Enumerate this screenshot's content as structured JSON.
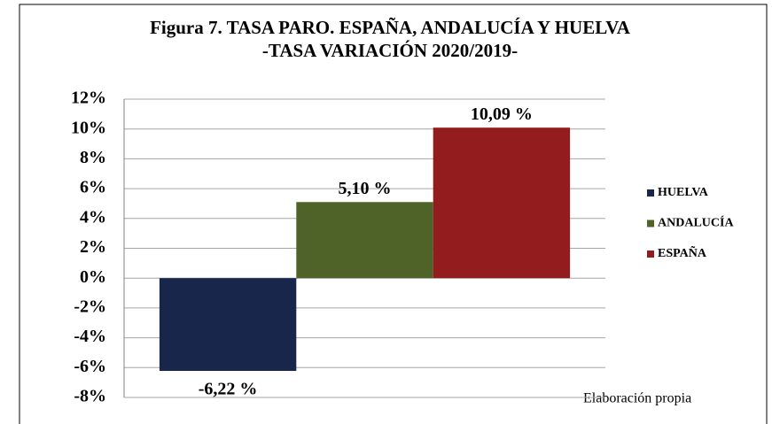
{
  "chart_data": {
    "type": "bar",
    "title": "Figura 7. TASA PARO. ESPAÑA, ANDALUCÍA Y HUELVA",
    "subtitle": "-TASA VARIACIÓN 2020/2019-",
    "categories": [
      null
    ],
    "series": [
      {
        "name": "HUELVA",
        "color": "#17264a",
        "values": [
          -6.22
        ],
        "value_labels": [
          "-6,22 %"
        ]
      },
      {
        "name": "ANDALUCÍA",
        "color": "#4f6228",
        "values": [
          5.1
        ],
        "value_labels": [
          "5,10 %"
        ]
      },
      {
        "name": "ESPAÑA",
        "color": "#921c1e",
        "values": [
          10.09
        ],
        "value_labels": [
          "10,09 %"
        ]
      }
    ],
    "ylim": [
      -8,
      12
    ],
    "yticks": [
      {
        "value": -8,
        "label": "-8%"
      },
      {
        "value": -6,
        "label": "-6%"
      },
      {
        "value": -4,
        "label": "-4%"
      },
      {
        "value": -2,
        "label": "-2%"
      },
      {
        "value": 0,
        "label": "0%"
      },
      {
        "value": 2,
        "label": "2%"
      },
      {
        "value": 4,
        "label": "4%"
      },
      {
        "value": 6,
        "label": "6%"
      },
      {
        "value": 8,
        "label": "8%"
      },
      {
        "value": 10,
        "label": "10%"
      },
      {
        "value": 12,
        "label": "12%"
      }
    ],
    "grid": true,
    "legend": "right",
    "annotation": "Elaboración propia"
  }
}
